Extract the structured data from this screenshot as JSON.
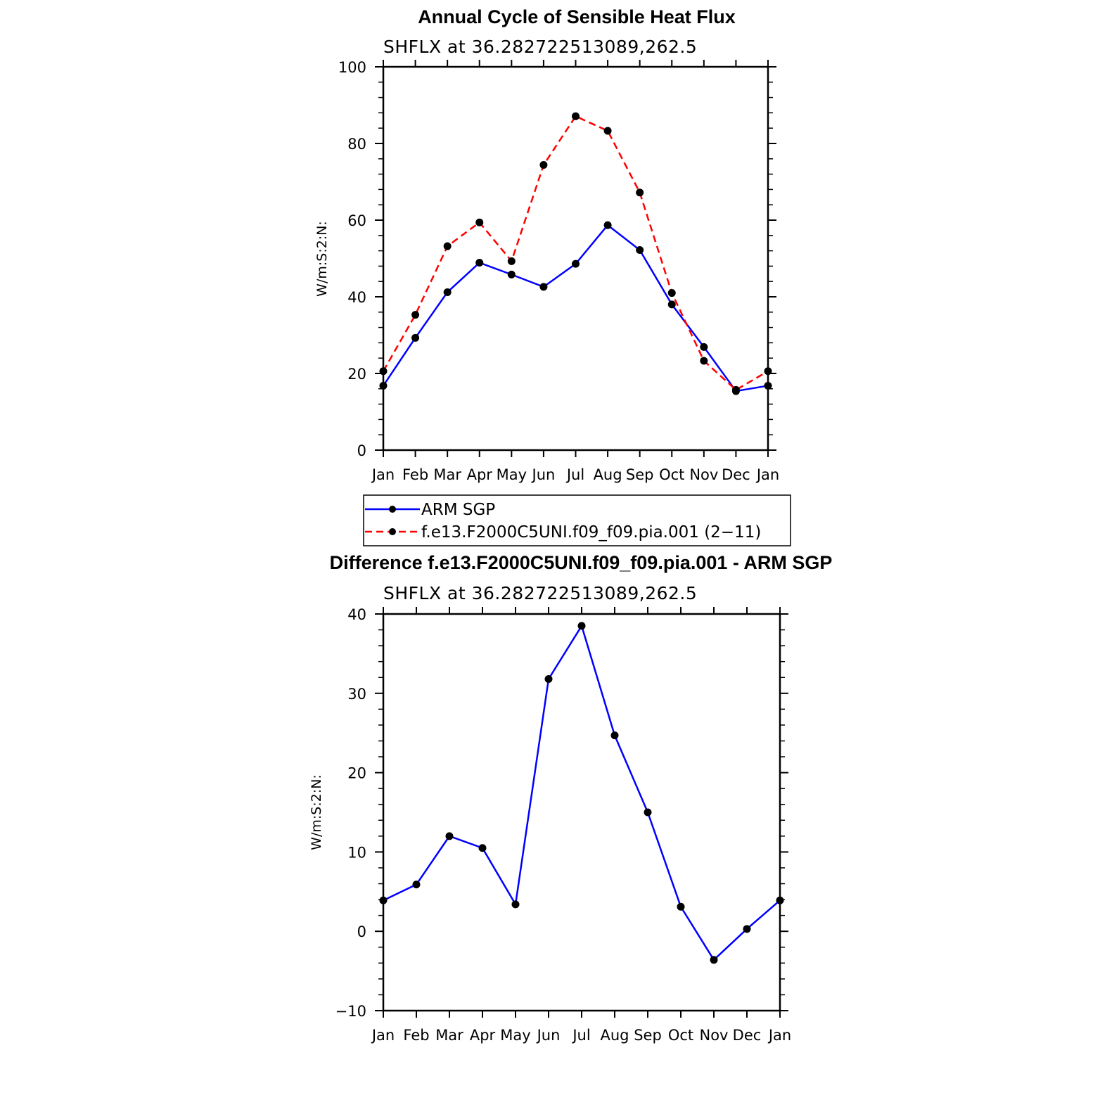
{
  "chart_data": [
    {
      "type": "line",
      "title": "Annual Cycle of Sensible Heat Flux",
      "subtitle": "SHFLX at 36.282722513089,262.5",
      "ylabel": "W/m:S:2:N:",
      "xlabel": "",
      "categories": [
        "Jan",
        "Feb",
        "Mar",
        "Apr",
        "May",
        "Jun",
        "Jul",
        "Aug",
        "Sep",
        "Oct",
        "Nov",
        "Dec",
        "Jan"
      ],
      "ylim": [
        0,
        100
      ],
      "yticks": [
        "0",
        "20",
        "40",
        "60",
        "80",
        "100"
      ],
      "series": [
        {
          "name": "ARM SGP",
          "color": "#0000ff",
          "dash": "solid",
          "values": [
            16.8,
            29.3,
            41.2,
            48.9,
            45.8,
            42.6,
            48.6,
            58.7,
            52.2,
            38.0,
            26.9,
            15.4,
            16.8
          ]
        },
        {
          "name": "f.e13.F2000C5UNI.f09_f09.pia.001 (2−11)",
          "color": "#ff0000",
          "dash": "dashed",
          "values": [
            20.6,
            35.3,
            53.2,
            59.4,
            49.3,
            74.4,
            87.1,
            83.3,
            67.2,
            41.0,
            23.3,
            15.7,
            20.6
          ]
        }
      ]
    },
    {
      "type": "line",
      "title": "Difference f.e13.F2000C5UNI.f09_f09.pia.001 - ARM SGP",
      "subtitle": "SHFLX at 36.282722513089,262.5",
      "ylabel": "W/m:S:2:N:",
      "xlabel": "",
      "categories": [
        "Jan",
        "Feb",
        "Mar",
        "Apr",
        "May",
        "Jun",
        "Jul",
        "Aug",
        "Sep",
        "Oct",
        "Nov",
        "Dec",
        "Jan"
      ],
      "ylim": [
        -10,
        40
      ],
      "yticks": [
        "−10",
        "0",
        "10",
        "20",
        "30",
        "40"
      ],
      "series": [
        {
          "name": "Difference",
          "color": "#0000ff",
          "dash": "solid",
          "values": [
            3.9,
            5.9,
            12.0,
            10.5,
            3.4,
            31.8,
            38.5,
            24.7,
            15.0,
            3.1,
            -3.6,
            0.3,
            3.9
          ]
        }
      ]
    }
  ]
}
